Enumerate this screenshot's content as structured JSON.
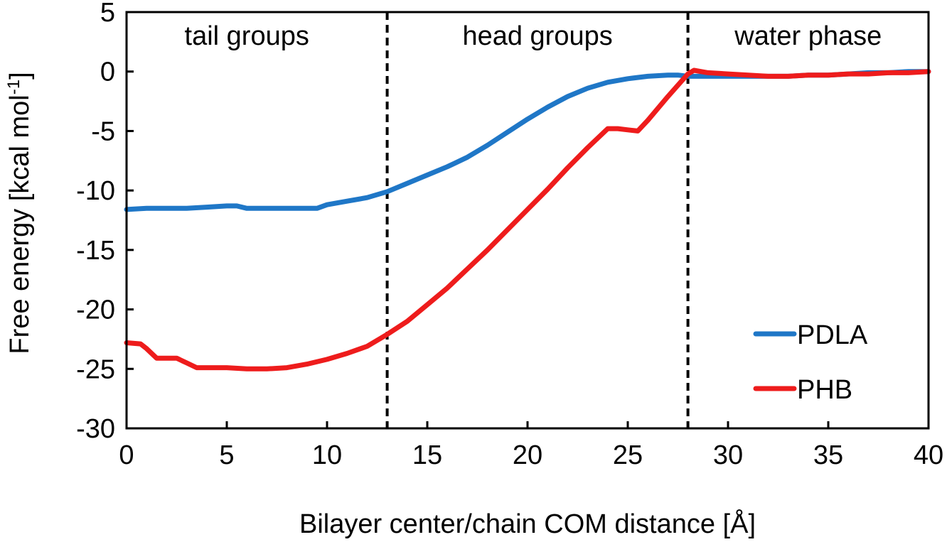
{
  "chart_data": {
    "type": "line",
    "title": "",
    "xlabel": "Bilayer center/chain COM distance [Å]",
    "ylabel_main": "Free energy [kcal mol",
    "ylabel_sup": "-1",
    "ylabel_close": "]",
    "xlim": [
      0,
      40
    ],
    "ylim": [
      -30,
      5
    ],
    "xticks": [
      0,
      5,
      10,
      15,
      20,
      25,
      30,
      35,
      40
    ],
    "yticks": [
      -30,
      -25,
      -20,
      -15,
      -10,
      -5,
      0,
      5
    ],
    "xtick_labels": [
      "0",
      "5",
      "10",
      "15",
      "20",
      "25",
      "30",
      "35",
      "40"
    ],
    "ytick_labels": [
      "-30",
      "-25",
      "-20",
      "-15",
      "-10",
      "-5",
      "0",
      "5"
    ],
    "grid": false,
    "legend_position": "bottom-right",
    "boundaries": [
      13,
      28
    ],
    "regions": [
      {
        "label": "tail groups",
        "x_center": 6.0
      },
      {
        "label": "head groups",
        "x_center": 20.5
      },
      {
        "label": "water phase",
        "x_center": 34.0
      }
    ],
    "series": [
      {
        "name": "PDLA",
        "color": "#1f77c7",
        "x": [
          0,
          1,
          2,
          3,
          4,
          5,
          5.5,
          6,
          7,
          8,
          9,
          9.5,
          10,
          11,
          12,
          13,
          14,
          15,
          16,
          17,
          18,
          19,
          20,
          21,
          22,
          23,
          24,
          25,
          26,
          27,
          27.5,
          28,
          29,
          30,
          31,
          32,
          33,
          34,
          35,
          36,
          37,
          38,
          39,
          40
        ],
        "y": [
          -11.6,
          -11.5,
          -11.5,
          -11.5,
          -11.4,
          -11.3,
          -11.3,
          -11.5,
          -11.5,
          -11.5,
          -11.5,
          -11.5,
          -11.2,
          -10.9,
          -10.6,
          -10.1,
          -9.4,
          -8.7,
          -8.0,
          -7.2,
          -6.2,
          -5.1,
          -4.0,
          -3.0,
          -2.1,
          -1.4,
          -0.9,
          -0.6,
          -0.4,
          -0.3,
          -0.3,
          -0.4,
          -0.4,
          -0.4,
          -0.4,
          -0.4,
          -0.4,
          -0.3,
          -0.3,
          -0.2,
          -0.1,
          -0.1,
          0.0,
          0.0
        ]
      },
      {
        "name": "PHB",
        "color": "#ee1c1c",
        "x": [
          0,
          0.7,
          1,
          1.5,
          2,
          2.5,
          3,
          3.5,
          4,
          5,
          6,
          7,
          8,
          9,
          10,
          11,
          12,
          13,
          14,
          15,
          16,
          17,
          18,
          19,
          20,
          21,
          22,
          23,
          24,
          24.5,
          25,
          25.5,
          26,
          27,
          28,
          28.3,
          29,
          30,
          31,
          32,
          33,
          34,
          35,
          36,
          37,
          38,
          39,
          40
        ],
        "y": [
          -22.8,
          -22.9,
          -23.3,
          -24.1,
          -24.1,
          -24.1,
          -24.5,
          -24.9,
          -24.9,
          -24.9,
          -25.0,
          -25.0,
          -24.9,
          -24.6,
          -24.2,
          -23.7,
          -23.1,
          -22.1,
          -21.0,
          -19.6,
          -18.2,
          -16.6,
          -15.0,
          -13.3,
          -11.6,
          -9.9,
          -8.1,
          -6.4,
          -4.8,
          -4.8,
          -4.9,
          -5.0,
          -4.1,
          -2.1,
          -0.2,
          0.1,
          -0.1,
          -0.2,
          -0.3,
          -0.4,
          -0.4,
          -0.3,
          -0.3,
          -0.2,
          -0.2,
          -0.1,
          -0.1,
          0.0
        ]
      }
    ]
  }
}
